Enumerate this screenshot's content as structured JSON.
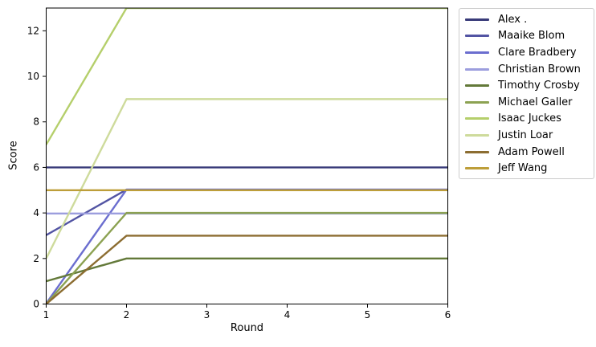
{
  "chart_data": {
    "type": "line",
    "title": "",
    "xlabel": "Round",
    "ylabel": "Score",
    "x": [
      1,
      2,
      3,
      4,
      5,
      6
    ],
    "xlim": [
      1,
      6
    ],
    "ylim": [
      0,
      13
    ],
    "x_ticks": [
      "1",
      "2",
      "3",
      "4",
      "5",
      "6"
    ],
    "y_ticks": [
      "0",
      "2",
      "4",
      "6",
      "8",
      "10",
      "12"
    ],
    "grid": false,
    "legend_position": "upper-right-outside",
    "series": [
      {
        "name": "Alex .",
        "color": "#393b79",
        "values": [
          6,
          6,
          6,
          6,
          6,
          6
        ]
      },
      {
        "name": "Maaike Blom",
        "color": "#5254a3",
        "values": [
          3,
          5,
          5,
          5,
          5,
          5
        ]
      },
      {
        "name": "Clare Bradbery",
        "color": "#6b6ecf",
        "values": [
          0,
          5,
          5,
          5,
          5,
          5
        ]
      },
      {
        "name": "Christian Brown",
        "color": "#9c9ede",
        "values": [
          4,
          4,
          4,
          4,
          4,
          4
        ]
      },
      {
        "name": "Timothy Crosby",
        "color": "#637939",
        "values": [
          1,
          2,
          2,
          2,
          2,
          2
        ]
      },
      {
        "name": "Michael Galler",
        "color": "#8ca252",
        "values": [
          0,
          4,
          4,
          4,
          4,
          4
        ]
      },
      {
        "name": "Isaac Juckes",
        "color": "#b5cf6b",
        "values": [
          7,
          13,
          13,
          13,
          13,
          13
        ]
      },
      {
        "name": "Justin Loar",
        "color": "#cedb9c",
        "values": [
          2,
          9,
          9,
          9,
          9,
          9
        ]
      },
      {
        "name": "Adam Powell",
        "color": "#8c6d31",
        "values": [
          0,
          3,
          3,
          3,
          3,
          3
        ]
      },
      {
        "name": "Jeff Wang",
        "color": "#bd9e39",
        "values": [
          5,
          5,
          5,
          5,
          5,
          5
        ]
      }
    ]
  }
}
